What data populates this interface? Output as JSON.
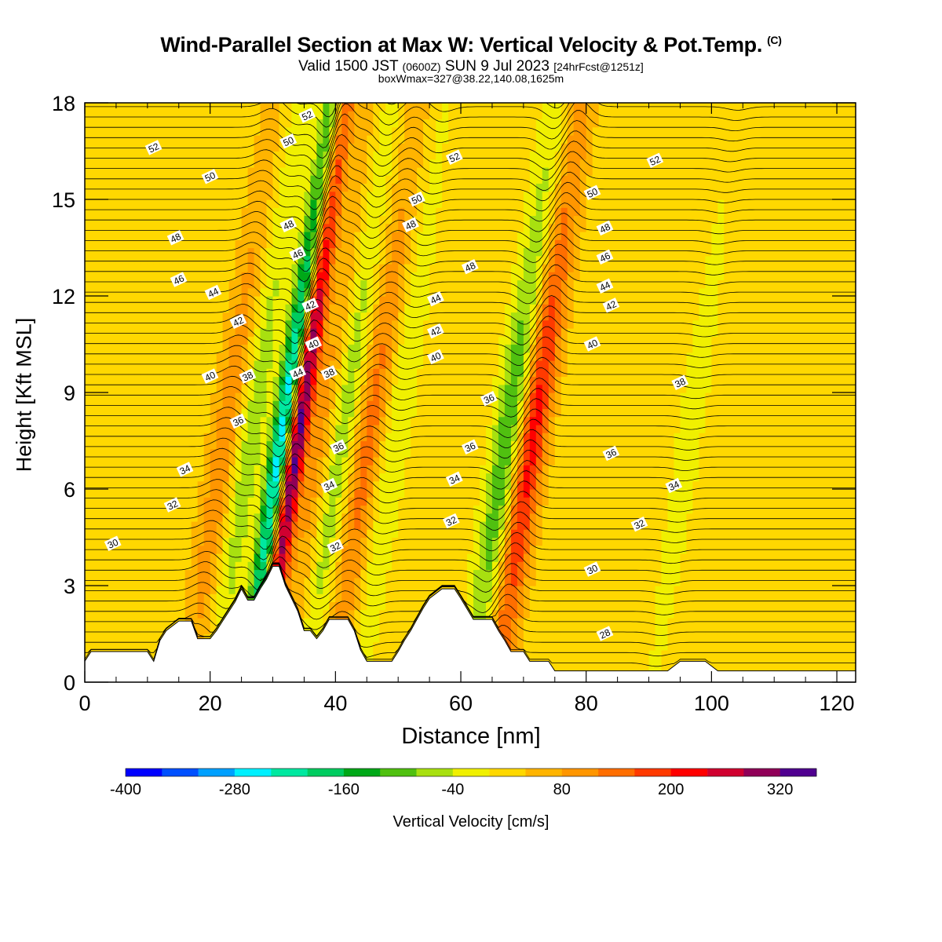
{
  "title": {
    "main": "Wind-Parallel Section at Max W: Vertical Velocity & Pot.Temp.",
    "mark": "(C)",
    "valid_prefix": "Valid 1500 JST",
    "utc": "(0600Z)",
    "valid_date": "SUN 9 Jul 2023",
    "forecast": "[24hrFcst@1251z]",
    "box_info": "boxWmax=327@38.22,140.08,1625m"
  },
  "chart_data": {
    "type": "heatmap",
    "xlabel": "Distance [nm]",
    "ylabel": "Height [Kft MSL]",
    "xlim": [
      0,
      123
    ],
    "ylim": [
      0,
      18
    ],
    "x_ticks": [
      0,
      20,
      40,
      60,
      80,
      100,
      120
    ],
    "y_ticks": [
      0,
      3,
      6,
      9,
      12,
      15,
      18
    ],
    "colorbar": {
      "title": "Vertical Velocity [cm/s]",
      "tick_labels": [
        "-400",
        "-280",
        "-160",
        "-40",
        "80",
        "200",
        "320"
      ],
      "tick_values": [
        -400,
        -280,
        -160,
        -40,
        80,
        200,
        320
      ],
      "range": [
        -400,
        360
      ],
      "step": 40,
      "colors": [
        "#0000ff",
        "#0050ff",
        "#00a0ff",
        "#00f0ff",
        "#00e8a0",
        "#00cc60",
        "#00a818",
        "#50c010",
        "#a8e010",
        "#f0f000",
        "#ffd800",
        "#ffb400",
        "#ff9600",
        "#ff6e00",
        "#ff3a00",
        "#ff0000",
        "#d00030",
        "#900058",
        "#500090"
      ]
    },
    "updrafts": [
      {
        "x": 33.5,
        "w": 330
      },
      {
        "x": 71,
        "w": 200
      },
      {
        "x": 45,
        "w": 120
      },
      {
        "x": 22,
        "w": 100
      },
      {
        "x": 38,
        "w": 110
      }
    ],
    "downdrafts": [
      {
        "x": 31,
        "w": -300
      },
      {
        "x": 40,
        "w": -130
      },
      {
        "x": 67,
        "w": -140
      },
      {
        "x": 26,
        "w": -90
      },
      {
        "x": 49,
        "w": -60
      },
      {
        "x": 96,
        "w": -40
      }
    ],
    "theta_contour_labels": [
      {
        "text": "52",
        "x": 11,
        "y": 16.6
      },
      {
        "text": "50",
        "x": 20,
        "y": 15.7
      },
      {
        "text": "48",
        "x": 14.5,
        "y": 13.8
      },
      {
        "text": "46",
        "x": 15,
        "y": 12.5
      },
      {
        "text": "44",
        "x": 20.5,
        "y": 12.1
      },
      {
        "text": "42",
        "x": 24.5,
        "y": 11.2
      },
      {
        "text": "40",
        "x": 20,
        "y": 9.5
      },
      {
        "text": "38",
        "x": 26,
        "y": 9.5
      },
      {
        "text": "36",
        "x": 24.5,
        "y": 8.1
      },
      {
        "text": "34",
        "x": 16,
        "y": 6.6
      },
      {
        "text": "32",
        "x": 14,
        "y": 5.5
      },
      {
        "text": "30",
        "x": 4.5,
        "y": 4.3
      },
      {
        "text": "52",
        "x": 35.5,
        "y": 17.6
      },
      {
        "text": "50",
        "x": 32.5,
        "y": 16.8
      },
      {
        "text": "48",
        "x": 32.5,
        "y": 14.2
      },
      {
        "text": "46",
        "x": 34,
        "y": 13.3
      },
      {
        "text": "42",
        "x": 36,
        "y": 11.7
      },
      {
        "text": "40",
        "x": 36.5,
        "y": 10.5
      },
      {
        "text": "44",
        "x": 34,
        "y": 9.6
      },
      {
        "text": "38",
        "x": 39,
        "y": 9.6
      },
      {
        "text": "36",
        "x": 40.5,
        "y": 7.3
      },
      {
        "text": "34",
        "x": 39,
        "y": 6.1
      },
      {
        "text": "32",
        "x": 40,
        "y": 4.2
      },
      {
        "text": "50",
        "x": 53,
        "y": 15.0
      },
      {
        "text": "48",
        "x": 52,
        "y": 14.2
      },
      {
        "text": "52",
        "x": 59,
        "y": 16.3
      },
      {
        "text": "48",
        "x": 61.5,
        "y": 12.9
      },
      {
        "text": "44",
        "x": 56,
        "y": 11.9
      },
      {
        "text": "42",
        "x": 56,
        "y": 10.9
      },
      {
        "text": "40",
        "x": 56,
        "y": 10.1
      },
      {
        "text": "36",
        "x": 64.5,
        "y": 8.8
      },
      {
        "text": "36",
        "x": 61.5,
        "y": 7.3
      },
      {
        "text": "34",
        "x": 59,
        "y": 6.3
      },
      {
        "text": "32",
        "x": 58.5,
        "y": 5.0
      },
      {
        "text": "50",
        "x": 81,
        "y": 15.2
      },
      {
        "text": "48",
        "x": 83,
        "y": 14.1
      },
      {
        "text": "46",
        "x": 83,
        "y": 13.2
      },
      {
        "text": "44",
        "x": 83,
        "y": 12.3
      },
      {
        "text": "42",
        "x": 84,
        "y": 11.7
      },
      {
        "text": "40",
        "x": 81,
        "y": 10.5
      },
      {
        "text": "38",
        "x": 95,
        "y": 9.3
      },
      {
        "text": "36",
        "x": 84,
        "y": 7.1
      },
      {
        "text": "34",
        "x": 94,
        "y": 6.1
      },
      {
        "text": "32",
        "x": 88.5,
        "y": 4.9
      },
      {
        "text": "30",
        "x": 81,
        "y": 3.5
      },
      {
        "text": "28",
        "x": 83,
        "y": 1.5
      },
      {
        "text": "52",
        "x": 91,
        "y": 16.2
      }
    ],
    "terrain": [
      [
        0,
        0.65
      ],
      [
        1,
        0.95
      ],
      [
        10,
        0.95
      ],
      [
        11,
        0.65
      ],
      [
        12,
        1.3
      ],
      [
        13,
        1.6
      ],
      [
        15,
        1.9
      ],
      [
        17,
        1.9
      ],
      [
        18,
        1.35
      ],
      [
        20,
        1.35
      ],
      [
        21,
        1.6
      ],
      [
        22,
        1.9
      ],
      [
        23,
        2.2
      ],
      [
        24,
        2.5
      ],
      [
        25,
        2.9
      ],
      [
        26,
        2.55
      ],
      [
        27,
        2.55
      ],
      [
        28,
        2.9
      ],
      [
        29,
        3.2
      ],
      [
        30,
        3.6
      ],
      [
        31,
        3.6
      ],
      [
        32,
        3.0
      ],
      [
        33,
        2.6
      ],
      [
        34,
        2.2
      ],
      [
        35,
        1.6
      ],
      [
        36,
        1.6
      ],
      [
        37,
        1.35
      ],
      [
        38,
        1.6
      ],
      [
        39,
        1.95
      ],
      [
        42,
        1.95
      ],
      [
        43,
        1.6
      ],
      [
        44,
        1.0
      ],
      [
        45,
        0.65
      ],
      [
        49,
        0.65
      ],
      [
        50,
        0.95
      ],
      [
        51,
        1.3
      ],
      [
        52,
        1.6
      ],
      [
        53,
        1.95
      ],
      [
        54,
        2.3
      ],
      [
        55,
        2.6
      ],
      [
        57,
        2.9
      ],
      [
        59,
        2.9
      ],
      [
        60,
        2.6
      ],
      [
        62,
        1.95
      ],
      [
        65,
        1.95
      ],
      [
        66,
        1.6
      ],
      [
        67,
        1.3
      ],
      [
        68,
        0.95
      ],
      [
        70,
        0.95
      ],
      [
        71,
        0.65
      ],
      [
        74,
        0.65
      ],
      [
        75,
        0.35
      ],
      [
        93,
        0.35
      ],
      [
        95,
        0.65
      ],
      [
        99,
        0.65
      ],
      [
        101,
        0.35
      ],
      [
        123,
        0.35
      ]
    ]
  }
}
